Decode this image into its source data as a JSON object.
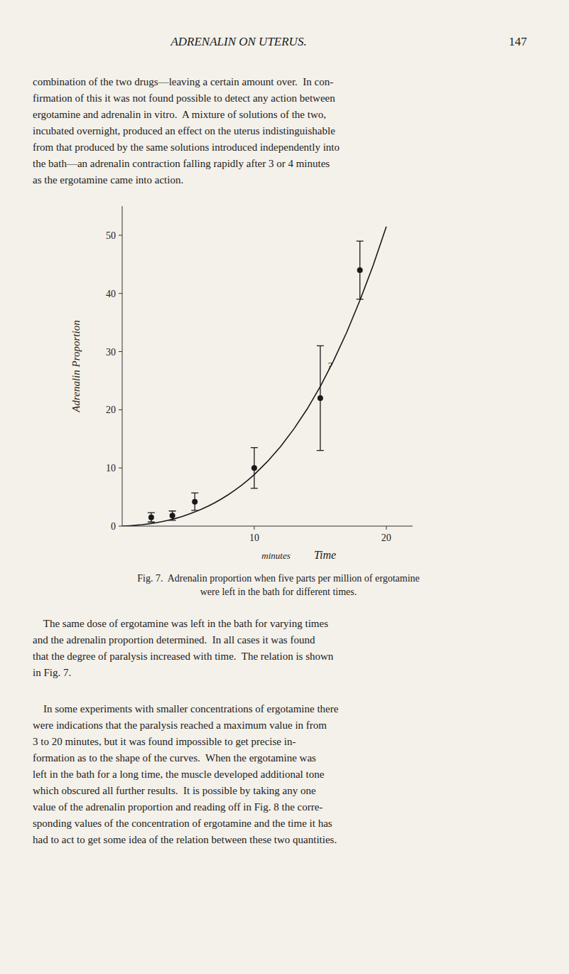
{
  "header": "ADRENALIN ON UTERUS.",
  "page_number": "147",
  "paragraphs": [
    "combination of the two drugs—leaving a certain amount over.  In con-\nfirmation of this it was not found possible to detect any action between\nergotamine and adrenalin in vitro.  A mixture of solutions of the two,\nincubated overnight, produced an effect on the uterus indistinguishable\nfrom that produced by the same solutions introduced independently into\nthe bath—an adrenalin contraction falling rapidly after 3 or 4 minutes\nas the ergotamine came into action.",
    "    The same dose of ergotamine was left in the bath for varying times\nand the adrenalin proportion determined.  In all cases it was found\nthat the degree of paralysis increased with time.  The relation is shown\nin Fig. 7.",
    "    In some experiments with smaller concentrations of ergotamine there\nwere indications that the paralysis reached a maximum value in from\n3 to 20 minutes, but it was found impossible to get precise in-\nformation as to the shape of the curves.  When the ergotamine was\nleft in the bath for a long time, the muscle developed additional tone\nwhich obscured all further results.  It is possible by taking any one\nvalue of the adrenalin proportion and reading off in Fig. 8 the corre-\nsponding values of the concentration of ergotamine and the time it has\nhad to act to get some idea of the relation between these two quantities."
  ],
  "chart_data": {
    "type": "line",
    "title": "Fig. 7.  Adrenalin proportion when five parts per million of ergotamine\nwere left in the bath for different times.",
    "ylabel": "Adrenalin Proportion",
    "xlabel": "Time",
    "x_unit": "minutes",
    "xlim": [
      0,
      22
    ],
    "ylim": [
      0,
      55
    ],
    "xticks": [
      10,
      20
    ],
    "yticks": [
      0,
      10,
      20,
      30,
      40,
      50
    ],
    "grid": false,
    "series": [
      {
        "type": "line",
        "color": "#1a1a1a",
        "line_style": "solid",
        "x": [
          0.0,
          0.3,
          0.6,
          1.0,
          1.5,
          2.0,
          2.5,
          3.0,
          3.5,
          4.0,
          4.5,
          5.0,
          5.5,
          6.0,
          6.5,
          7.0,
          7.5,
          8.0,
          8.5,
          9.0,
          9.5,
          10.0,
          11.0,
          12.0,
          13.0,
          14.0,
          15.0,
          16.0,
          17.0,
          18.0,
          19.0,
          20.0
        ],
        "values": [
          0.0,
          0.03,
          0.07,
          0.14,
          0.24,
          0.38,
          0.55,
          0.76,
          1.01,
          1.3,
          1.63,
          2.01,
          2.43,
          2.9,
          3.43,
          4.01,
          4.65,
          5.35,
          6.12,
          6.95,
          7.86,
          8.85,
          11.1,
          13.7,
          16.7,
          20.1,
          24.0,
          28.4,
          33.3,
          38.8,
          44.8,
          51.5
        ]
      },
      {
        "type": "scatter",
        "color": "#1a1a1a",
        "marker": "circle",
        "x": [
          2.2,
          3.8,
          5.5,
          10.0,
          15.0,
          18.0
        ],
        "values": [
          1.5,
          1.8,
          4.2,
          10.0,
          22.0,
          44.0
        ],
        "error_low": [
          0.8,
          0.8,
          1.5,
          3.5,
          9.0,
          5.0
        ],
        "error_high": [
          0.8,
          0.8,
          1.5,
          3.5,
          9.0,
          5.0
        ]
      }
    ],
    "annotations": [
      {
        "text": "?",
        "x": 15.5,
        "y": 27.5
      }
    ]
  }
}
